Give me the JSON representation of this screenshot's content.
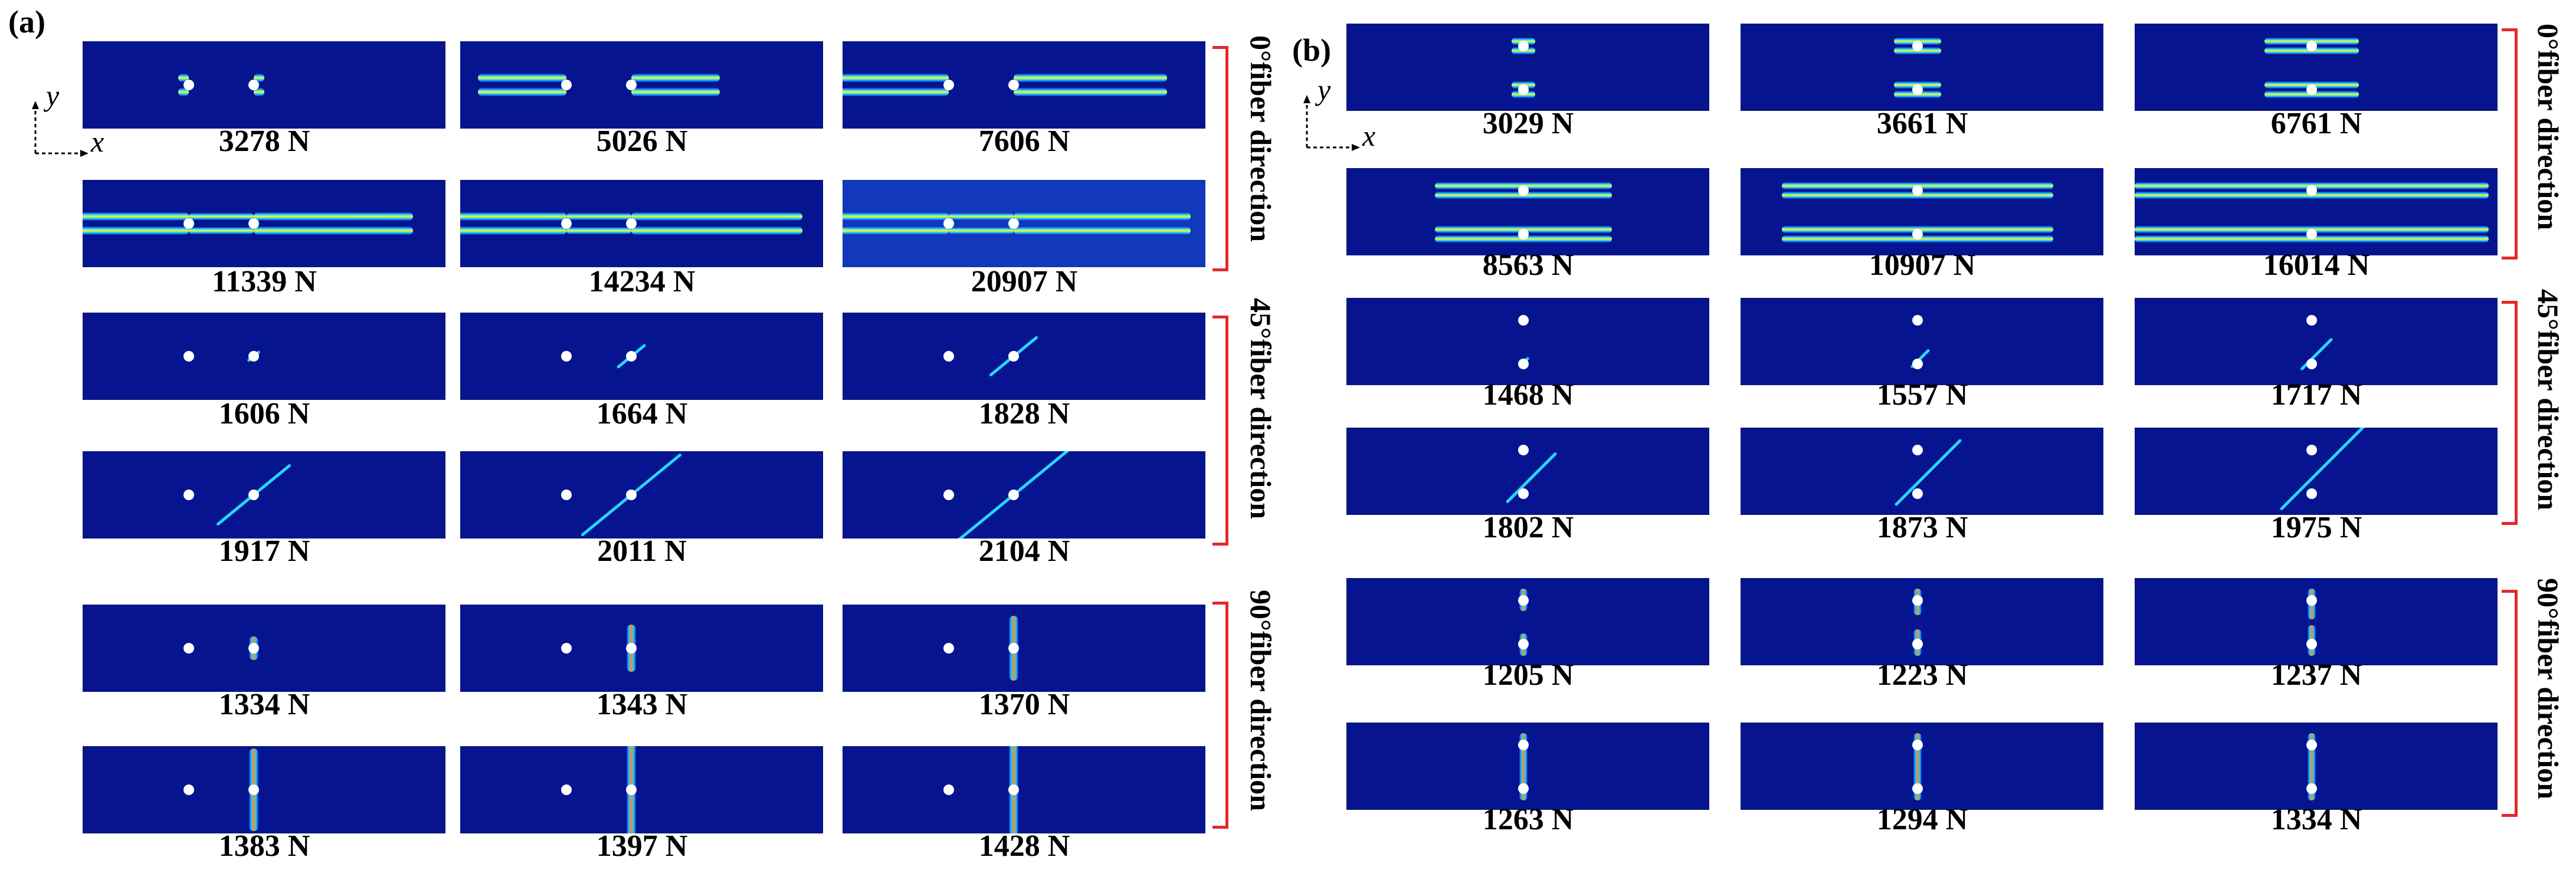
{
  "panels": [
    {
      "label": "(a)",
      "axes": {
        "y": "y",
        "x": "x"
      },
      "groups": [
        {
          "label": "0°fiber direction",
          "cases": [
            "3278 N",
            "5026 N",
            "7606 N",
            "11339 N",
            "14234 N",
            "20907 N"
          ]
        },
        {
          "label": "45°fiber direction",
          "cases": [
            "1606 N",
            "1664 N",
            "1828 N",
            "1917 N",
            "2011 N",
            "2104 N"
          ]
        },
        {
          "label": "90°fiber direction",
          "cases": [
            "1334 N",
            "1343 N",
            "1370 N",
            "1383 N",
            "1397 N",
            "1428 N"
          ]
        }
      ]
    },
    {
      "label": "(b)",
      "axes": {
        "y": "y",
        "x": "x"
      },
      "groups": [
        {
          "label": "0°fiber direction",
          "cases": [
            "3029 N",
            "3661 N",
            "6761 N",
            "8563 N",
            "10907 N",
            "16014 N"
          ]
        },
        {
          "label": "45°fiber direction",
          "cases": [
            "1468 N",
            "1557 N",
            "1717 N",
            "1802 N",
            "1873 N",
            "1975 N"
          ]
        },
        {
          "label": "90°fiber direction",
          "cases": [
            "1205 N",
            "1223 N",
            "1237 N",
            "1263 N",
            "1294 N",
            "1334 N"
          ]
        }
      ]
    }
  ],
  "colors": {
    "background": "#06148f",
    "hole": "#ffffff",
    "damage_high": "#ff2a00",
    "damage_mid": "#f4ff2a",
    "damage_low": "#29d6ff",
    "bracket": "#e22a2a"
  }
}
